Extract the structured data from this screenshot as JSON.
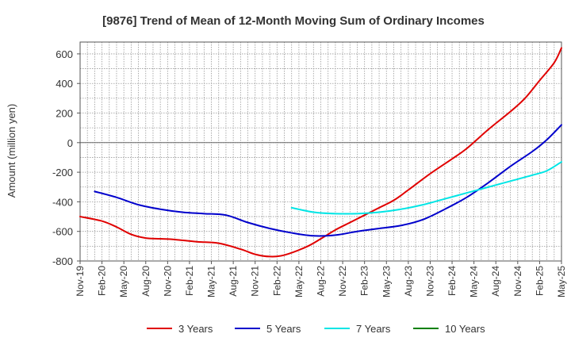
{
  "chart_data": {
    "type": "line",
    "title": "[9876]  Trend of Mean of 12-Month Moving Sum of Ordinary Incomes",
    "xlabel": "",
    "ylabel": "Amount (million yen)",
    "ylim": [
      -800,
      680
    ],
    "yticks": [
      -800,
      -600,
      -400,
      -200,
      0,
      200,
      400,
      600
    ],
    "x_tick_labels": [
      "Nov-19",
      "Feb-20",
      "May-20",
      "Aug-20",
      "Nov-20",
      "Feb-21",
      "May-21",
      "Aug-21",
      "Nov-21",
      "Feb-22",
      "May-22",
      "Aug-22",
      "Nov-22",
      "Feb-23",
      "May-23",
      "Aug-23",
      "Nov-23",
      "Feb-24",
      "May-24",
      "Aug-24",
      "Nov-24",
      "Feb-25",
      "May-25"
    ],
    "x_months": 66,
    "series": [
      {
        "name": "3 Years",
        "color": "#e00000",
        "points": [
          [
            0,
            -500
          ],
          [
            3,
            -530
          ],
          [
            5,
            -570
          ],
          [
            7,
            -620
          ],
          [
            9,
            -645
          ],
          [
            11,
            -650
          ],
          [
            13,
            -655
          ],
          [
            16,
            -670
          ],
          [
            19,
            -680
          ],
          [
            22,
            -720
          ],
          [
            24,
            -755
          ],
          [
            26,
            -770
          ],
          [
            28,
            -760
          ],
          [
            31,
            -705
          ],
          [
            33,
            -650
          ],
          [
            35,
            -590
          ],
          [
            37,
            -540
          ],
          [
            39,
            -490
          ],
          [
            41,
            -440
          ],
          [
            43,
            -390
          ],
          [
            45,
            -320
          ],
          [
            48,
            -210
          ],
          [
            51,
            -110
          ],
          [
            53,
            -40
          ],
          [
            56,
            90
          ],
          [
            59,
            210
          ],
          [
            61,
            300
          ],
          [
            63,
            420
          ],
          [
            65,
            540
          ],
          [
            66,
            640
          ]
        ]
      },
      {
        "name": "5 Years",
        "color": "#0000cc",
        "points": [
          [
            2,
            -330
          ],
          [
            5,
            -370
          ],
          [
            8,
            -420
          ],
          [
            11,
            -450
          ],
          [
            14,
            -470
          ],
          [
            17,
            -480
          ],
          [
            20,
            -490
          ],
          [
            23,
            -540
          ],
          [
            26,
            -580
          ],
          [
            29,
            -610
          ],
          [
            32,
            -630
          ],
          [
            35,
            -625
          ],
          [
            38,
            -600
          ],
          [
            41,
            -580
          ],
          [
            44,
            -560
          ],
          [
            47,
            -520
          ],
          [
            50,
            -450
          ],
          [
            53,
            -370
          ],
          [
            56,
            -270
          ],
          [
            59,
            -160
          ],
          [
            62,
            -60
          ],
          [
            64,
            20
          ],
          [
            66,
            120
          ]
        ]
      },
      {
        "name": "7 Years",
        "color": "#00e5e5",
        "points": [
          [
            29,
            -440
          ],
          [
            32,
            -470
          ],
          [
            35,
            -480
          ],
          [
            38,
            -480
          ],
          [
            41,
            -470
          ],
          [
            44,
            -450
          ],
          [
            47,
            -420
          ],
          [
            50,
            -380
          ],
          [
            53,
            -340
          ],
          [
            56,
            -300
          ],
          [
            59,
            -260
          ],
          [
            62,
            -220
          ],
          [
            64,
            -190
          ],
          [
            66,
            -130
          ]
        ]
      },
      {
        "name": "10 Years",
        "color": "#008000",
        "points": []
      }
    ],
    "legend_position": "bottom",
    "grid": true
  }
}
